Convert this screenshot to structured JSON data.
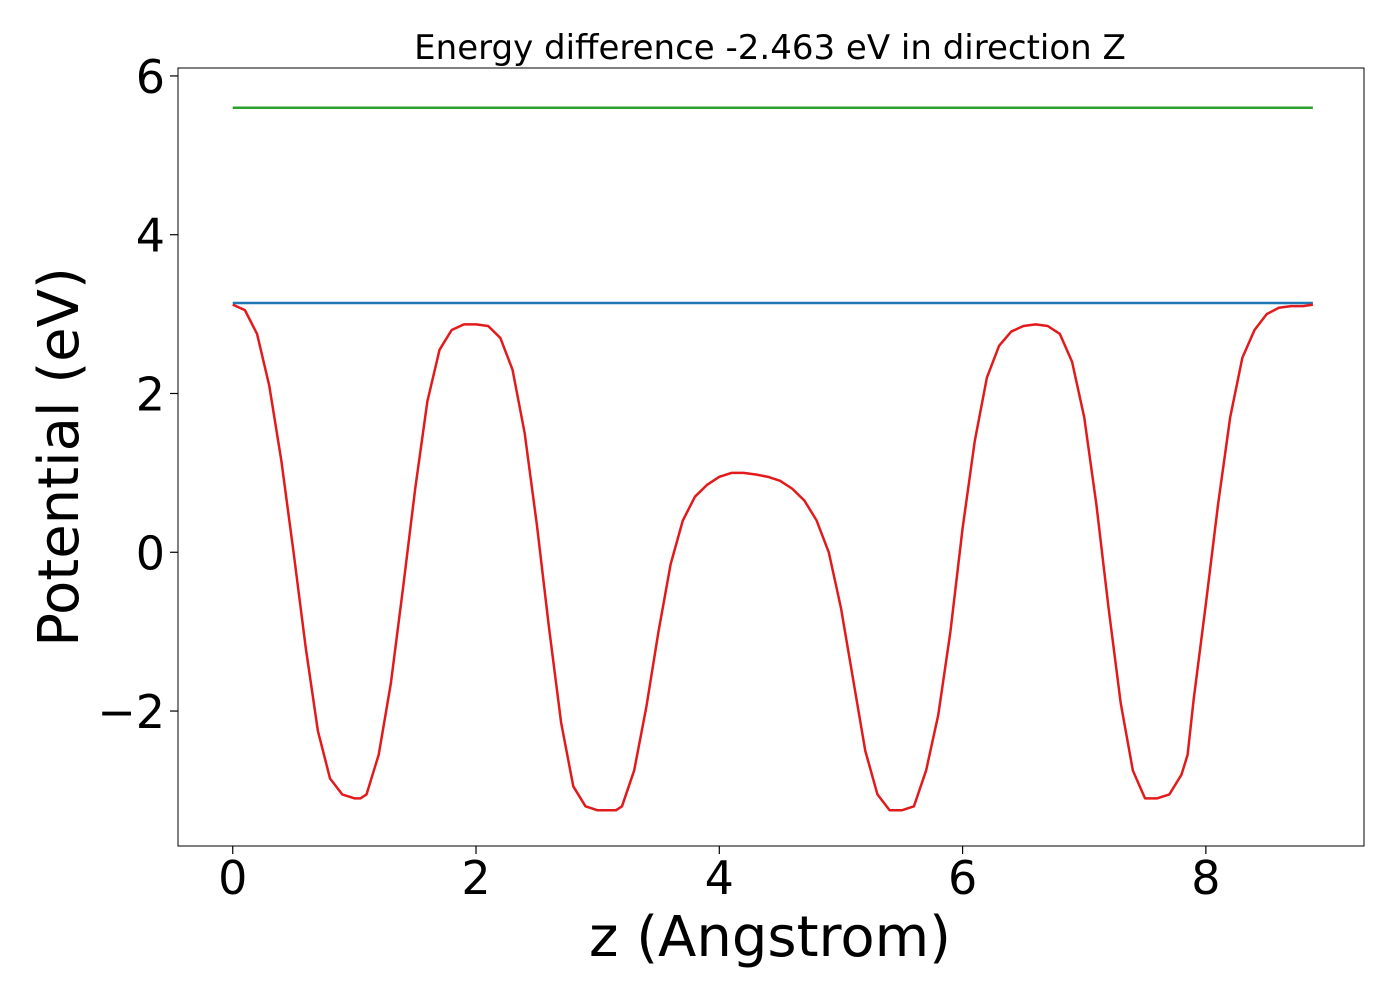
{
  "chart_data": {
    "type": "line",
    "title": "Energy difference -2.463 eV in direction Z",
    "xlabel": "z (Angstrom)",
    "ylabel": "Potential (eV)",
    "xlim": [
      -0.45,
      9.3
    ],
    "ylim": [
      -3.7,
      6.1
    ],
    "xticks": [
      0,
      2,
      4,
      6,
      8
    ],
    "xtick_labels": [
      "0",
      "2",
      "4",
      "6",
      "8"
    ],
    "yticks": [
      -2,
      0,
      2,
      4,
      6
    ],
    "ytick_labels": [
      "−2",
      "0",
      "2",
      "4",
      "6"
    ],
    "grid": false,
    "legend": "none",
    "series": [
      {
        "color": "#2ca02c",
        "x": [
          0,
          8.88
        ],
        "y": [
          5.6,
          5.6
        ]
      },
      {
        "color": "#1f77b4",
        "x": [
          0,
          8.88
        ],
        "y": [
          3.14,
          3.14
        ]
      },
      {
        "color": "#e31a1c",
        "x": [
          0.0,
          0.1,
          0.2,
          0.3,
          0.4,
          0.5,
          0.6,
          0.7,
          0.8,
          0.9,
          1.0,
          1.05,
          1.1,
          1.2,
          1.3,
          1.4,
          1.5,
          1.6,
          1.7,
          1.8,
          1.9,
          2.0,
          2.1,
          2.2,
          2.3,
          2.4,
          2.5,
          2.6,
          2.7,
          2.8,
          2.9,
          3.0,
          3.1,
          3.15,
          3.2,
          3.3,
          3.4,
          3.5,
          3.6,
          3.7,
          3.8,
          3.9,
          4.0,
          4.1,
          4.2,
          4.3,
          4.4,
          4.5,
          4.6,
          4.7,
          4.8,
          4.9,
          5.0,
          5.1,
          5.2,
          5.3,
          5.4,
          5.5,
          5.6,
          5.7,
          5.75,
          5.8,
          5.9,
          6.0,
          6.1,
          6.2,
          6.3,
          6.4,
          6.5,
          6.6,
          6.7,
          6.8,
          6.9,
          7.0,
          7.1,
          7.2,
          7.3,
          7.4,
          7.5,
          7.6,
          7.7,
          7.8,
          7.85,
          7.9,
          8.0,
          8.1,
          8.2,
          8.3,
          8.4,
          8.5,
          8.6,
          8.7,
          8.8,
          8.88
        ],
        "y": [
          3.12,
          3.05,
          2.75,
          2.1,
          1.15,
          0.0,
          -1.2,
          -2.25,
          -2.85,
          -3.05,
          -3.1,
          -3.1,
          -3.05,
          -2.55,
          -1.65,
          -0.45,
          0.8,
          1.9,
          2.55,
          2.8,
          2.87,
          2.87,
          2.85,
          2.7,
          2.3,
          1.5,
          0.35,
          -0.95,
          -2.15,
          -2.95,
          -3.2,
          -3.25,
          -3.25,
          -3.25,
          -3.2,
          -2.75,
          -1.95,
          -1.0,
          -0.15,
          0.4,
          0.7,
          0.85,
          0.95,
          1.0,
          1.0,
          0.98,
          0.95,
          0.9,
          0.8,
          0.65,
          0.4,
          0.0,
          -0.7,
          -1.6,
          -2.5,
          -3.05,
          -3.25,
          -3.25,
          -3.2,
          -2.75,
          -2.4,
          -2.05,
          -1.0,
          0.3,
          1.4,
          2.2,
          2.6,
          2.78,
          2.85,
          2.87,
          2.85,
          2.75,
          2.4,
          1.7,
          0.6,
          -0.7,
          -1.9,
          -2.75,
          -3.1,
          -3.1,
          -3.05,
          -2.8,
          -2.55,
          -1.85,
          -0.65,
          0.6,
          1.7,
          2.45,
          2.8,
          3.0,
          3.08,
          3.1,
          3.1,
          3.12
        ]
      }
    ]
  }
}
